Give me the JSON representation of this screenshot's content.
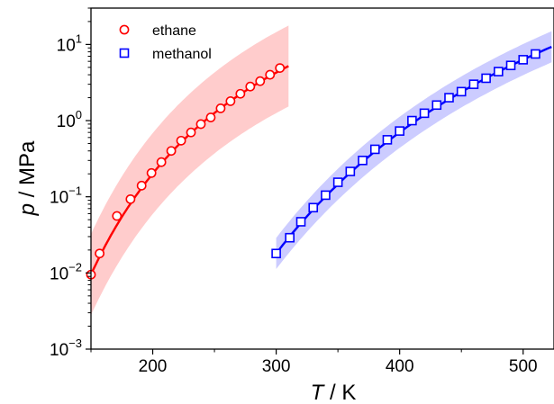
{
  "chart_data": {
    "type": "scatter",
    "title": "",
    "xlabel": {
      "symbol": "T",
      "unit": " / K"
    },
    "ylabel": {
      "symbol": "p",
      "unit": " / MPa"
    },
    "xlim": [
      150,
      525
    ],
    "ylim": [
      0.001,
      30
    ],
    "yscale": "log",
    "xticks": [
      {
        "value": 200,
        "label": "200"
      },
      {
        "value": 300,
        "label": "300"
      },
      {
        "value": 400,
        "label": "400"
      },
      {
        "value": 500,
        "label": "500"
      }
    ],
    "yticks": [
      {
        "value": 0.001,
        "base": "10",
        "exp": "−3"
      },
      {
        "value": 0.01,
        "base": "10",
        "exp": "−2"
      },
      {
        "value": 0.1,
        "base": "10",
        "exp": "−1"
      },
      {
        "value": 1,
        "base": "10",
        "exp": "0"
      },
      {
        "value": 10,
        "base": "10",
        "exp": "1"
      }
    ],
    "legend": {
      "position": "top-left"
    },
    "series": [
      {
        "name": "ethane",
        "color": "#ff0000",
        "band_color": "#ffcccc",
        "marker": "circle",
        "curve": {
          "x1": 150,
          "p1": 0.0095,
          "x2": 310,
          "p2": 5.2
        },
        "band_factor": 3.4,
        "x": [
          150,
          157,
          171,
          182,
          191,
          199,
          207,
          215,
          223,
          231,
          239,
          247,
          255,
          263,
          271,
          279,
          287,
          295,
          303
        ],
        "y": [
          0.0095,
          0.018,
          0.056,
          0.093,
          0.14,
          0.205,
          0.285,
          0.4,
          0.545,
          0.7,
          0.9,
          1.1,
          1.45,
          1.8,
          2.25,
          2.8,
          3.3,
          4.0,
          4.9
        ]
      },
      {
        "name": "methanol",
        "color": "#0000ff",
        "band_color": "#ccccff",
        "marker": "square",
        "curve": {
          "x1": 300,
          "p1": 0.018,
          "x2": 523,
          "p2": 9.3
        },
        "band_factor": 1.6,
        "x": [
          300,
          311,
          320,
          330,
          340,
          350,
          360,
          370,
          380,
          390,
          400,
          410,
          420,
          430,
          440,
          450,
          460,
          470,
          480,
          490,
          500,
          510
        ],
        "y": [
          0.018,
          0.029,
          0.047,
          0.072,
          0.105,
          0.155,
          0.215,
          0.3,
          0.42,
          0.56,
          0.73,
          1.0,
          1.25,
          1.6,
          2.0,
          2.4,
          3.0,
          3.6,
          4.4,
          5.3,
          6.3,
          7.5
        ]
      }
    ]
  }
}
